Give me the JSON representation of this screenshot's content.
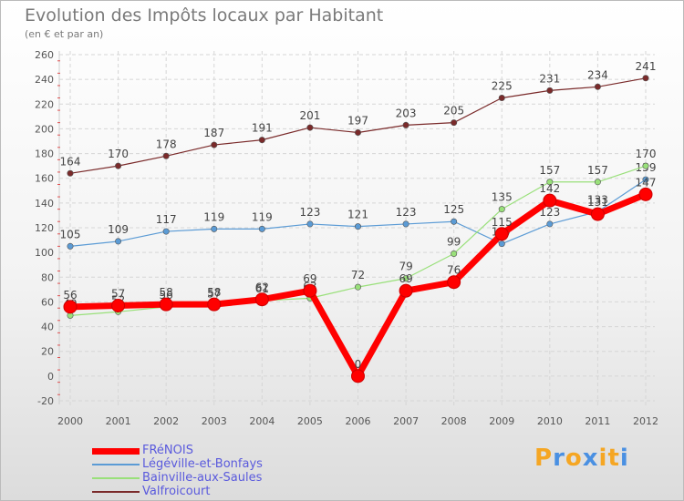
{
  "chart_data": {
    "type": "line",
    "title": "Evolution des Impôts locaux par Habitant",
    "subtitle": "(en € et par an)",
    "categories": [
      "2000",
      "2001",
      "2002",
      "2003",
      "2004",
      "2005",
      "2006",
      "2007",
      "2008",
      "2009",
      "2010",
      "2011",
      "2012"
    ],
    "ylim": [
      -20,
      260
    ],
    "ytick_step": 20,
    "grid": true,
    "series": [
      {
        "name": "Valfroicourt",
        "color": "#7a2a2a",
        "values": [
          164,
          170,
          178,
          187,
          191,
          201,
          197,
          203,
          205,
          225,
          231,
          234,
          241
        ]
      },
      {
        "name": "Légéville-et-Bonfays",
        "color": "#5b9bd5",
        "values": [
          105,
          109,
          117,
          119,
          119,
          123,
          121,
          123,
          125,
          107,
          123,
          133,
          159
        ]
      },
      {
        "name": "Bainville-aux-Saules",
        "color": "#99e07a",
        "values": [
          49,
          52,
          56,
          57,
          61,
          63,
          72,
          79,
          99,
          135,
          157,
          157,
          170
        ]
      },
      {
        "name": "FRéNOIS",
        "color": "#ff0000",
        "values": [
          56,
          57,
          58,
          58,
          62,
          69,
          0,
          69,
          76,
          115,
          142,
          131,
          147
        ]
      }
    ],
    "legend_order": [
      "FRéNOIS",
      "Légéville-et-Bonfays",
      "Bainville-aux-Saules",
      "Valfroicourt"
    ]
  },
  "branding": {
    "letters": [
      "P",
      "r",
      "o",
      "x",
      "i",
      "t",
      "i"
    ],
    "letter_colors": [
      "#f5a623",
      "#4a90e2",
      "#f5a623",
      "#4a90e2",
      "#f5a623",
      "#f5a623",
      "#4a90e2"
    ]
  }
}
